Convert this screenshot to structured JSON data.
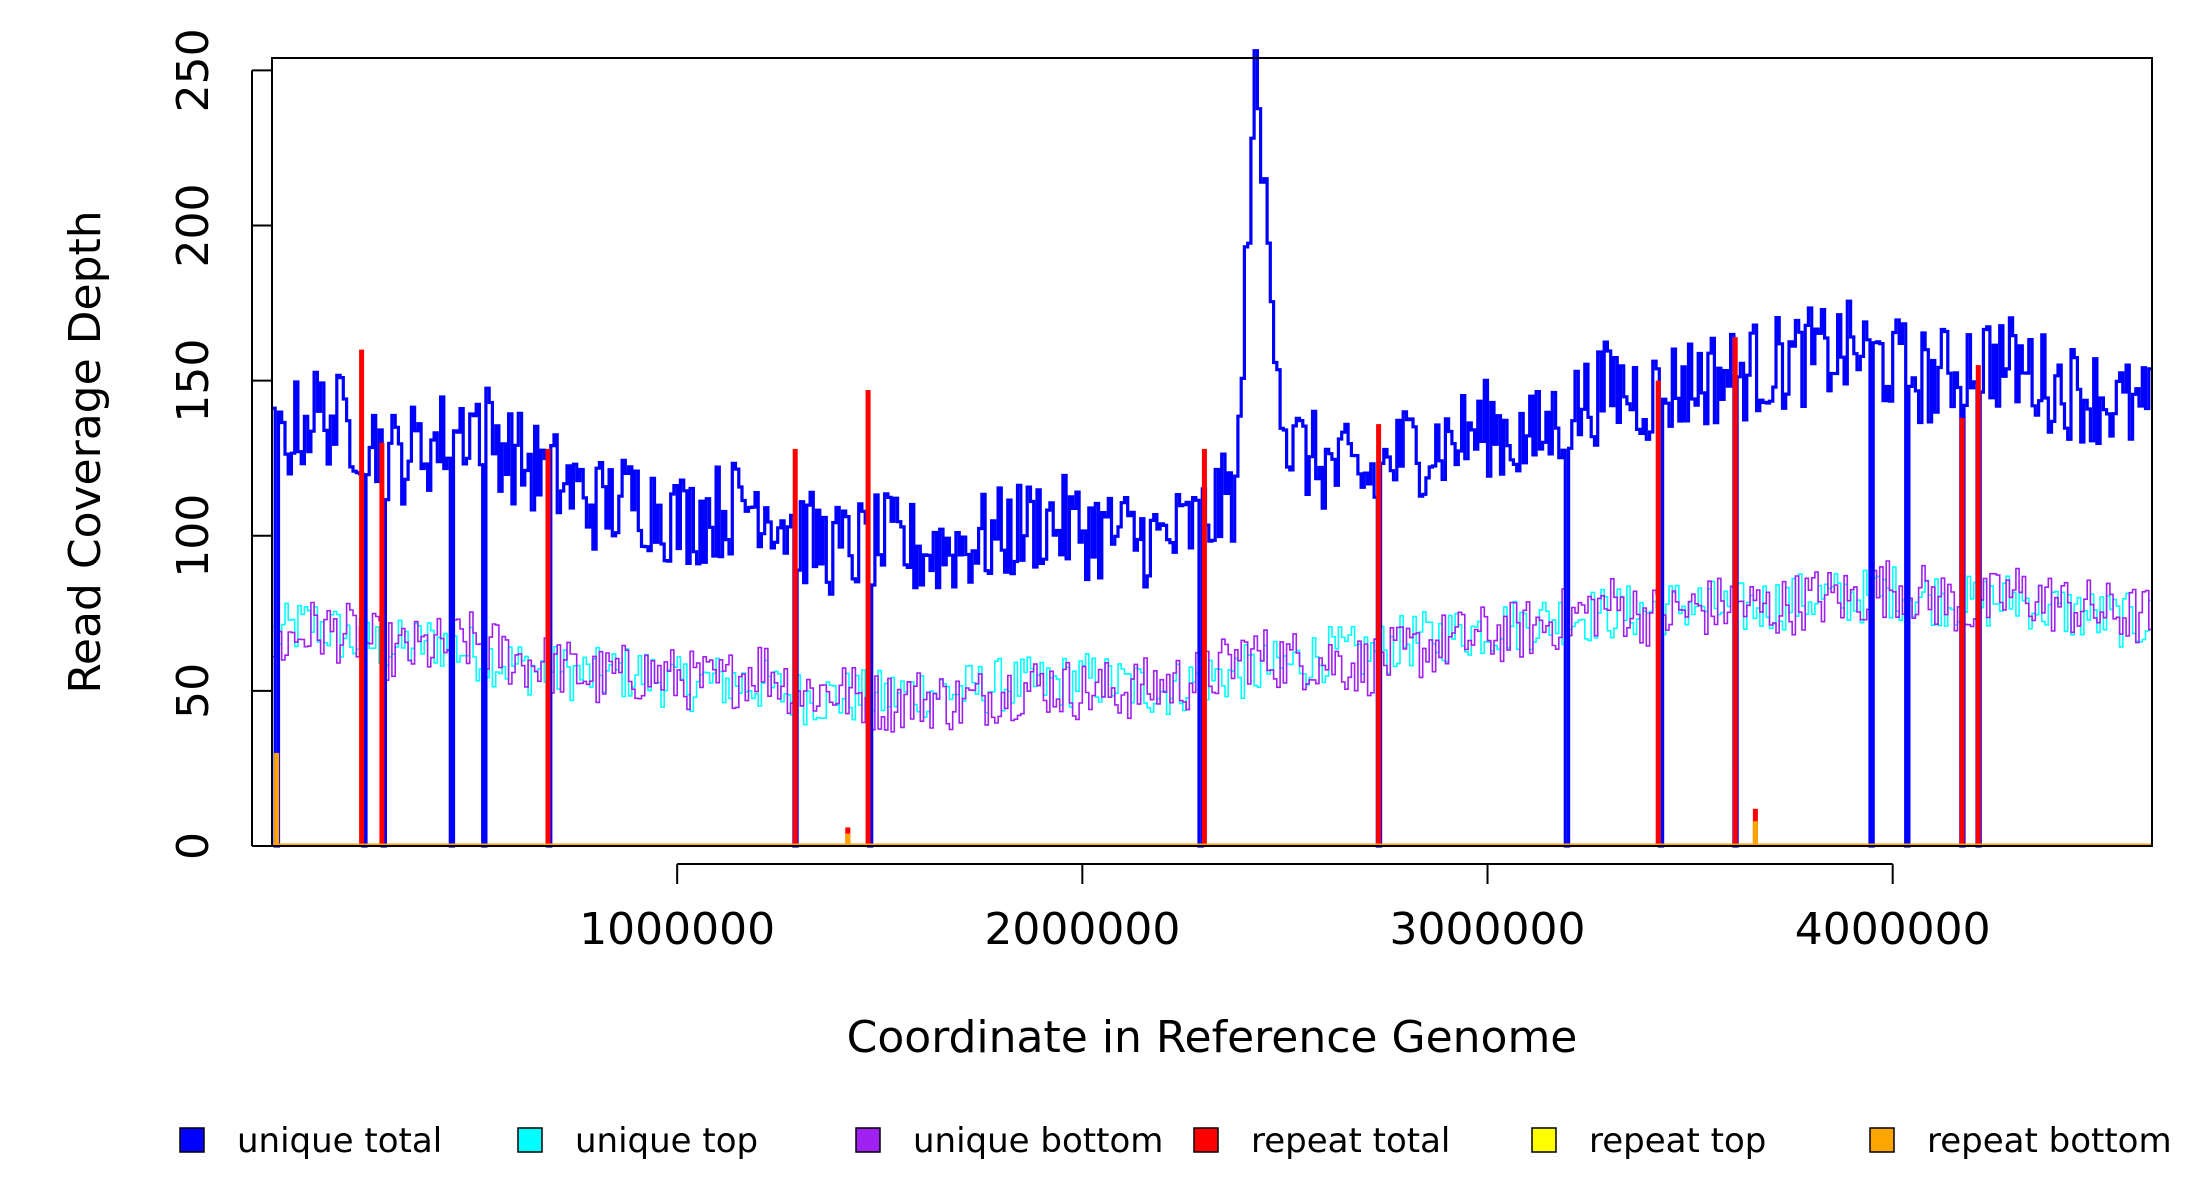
{
  "chart_data": {
    "type": "line",
    "title": "",
    "xlabel": "Coordinate in Reference Genome",
    "ylabel": "Read Coverage Depth",
    "xlim": [
      0,
      4640000
    ],
    "ylim": [
      0,
      255
    ],
    "x_ticks": [
      1000000,
      2000000,
      3000000,
      4000000
    ],
    "x_tick_labels": [
      "1000000",
      "2000000",
      "3000000",
      "4000000"
    ],
    "y_ticks": [
      0,
      50,
      100,
      150,
      200,
      250
    ],
    "y_tick_labels": [
      "0",
      "50",
      "100",
      "150",
      "200",
      "250"
    ],
    "grid": false,
    "legend_position": "bottom",
    "legend": [
      {
        "label": "unique total",
        "color": "#0000ff"
      },
      {
        "label": "unique top",
        "color": "#00ffff"
      },
      {
        "label": "unique bottom",
        "color": "#a020f0"
      },
      {
        "label": "repeat total",
        "color": "#ff0000"
      },
      {
        "label": "repeat top",
        "color": "#ffff00"
      },
      {
        "label": "repeat bottom",
        "color": "#ffa500"
      }
    ],
    "series": [
      {
        "name": "unique total",
        "color": "#0000ff",
        "x": [
          0,
          100000,
          200000,
          300000,
          400000,
          500000,
          600000,
          700000,
          800000,
          900000,
          1000000,
          1100000,
          1200000,
          1300000,
          1400000,
          1500000,
          1600000,
          1700000,
          1800000,
          1900000,
          2000000,
          2100000,
          2200000,
          2300000,
          2380000,
          2420000,
          2500000,
          2600000,
          2700000,
          2800000,
          2900000,
          3000000,
          3100000,
          3200000,
          3300000,
          3400000,
          3500000,
          3600000,
          3700000,
          3800000,
          3900000,
          4000000,
          4100000,
          4200000,
          4300000,
          4400000,
          4500000,
          4600000
        ],
        "y": [
          128,
          140,
          135,
          125,
          130,
          138,
          125,
          118,
          110,
          112,
          105,
          108,
          112,
          100,
          95,
          98,
          95,
          97,
          100,
          105,
          102,
          100,
          98,
          105,
          115,
          248,
          130,
          122,
          118,
          128,
          130,
          135,
          130,
          140,
          148,
          145,
          150,
          152,
          155,
          158,
          160,
          155,
          150,
          158,
          155,
          148,
          145,
          140
        ]
      },
      {
        "name": "unique top",
        "color": "#00ffff",
        "x": [
          0,
          100000,
          200000,
          300000,
          400000,
          500000,
          600000,
          700000,
          800000,
          900000,
          1000000,
          1100000,
          1200000,
          1300000,
          1400000,
          1500000,
          1600000,
          1700000,
          1800000,
          1900000,
          2000000,
          2100000,
          2200000,
          2300000,
          2400000,
          2500000,
          2600000,
          2700000,
          2800000,
          2900000,
          3000000,
          3100000,
          3200000,
          3300000,
          3400000,
          3500000,
          3600000,
          3700000,
          3800000,
          3900000,
          4000000,
          4100000,
          4200000,
          4300000,
          4400000,
          4500000,
          4600000
        ],
        "y": [
          68,
          72,
          66,
          64,
          66,
          62,
          58,
          56,
          55,
          56,
          52,
          53,
          52,
          48,
          48,
          48,
          50,
          50,
          52,
          52,
          54,
          52,
          50,
          54,
          56,
          58,
          62,
          62,
          66,
          68,
          70,
          72,
          74,
          75,
          76,
          78,
          76,
          78,
          80,
          80,
          82,
          80,
          78,
          80,
          76,
          74,
          72
        ]
      },
      {
        "name": "unique bottom",
        "color": "#a020f0",
        "x": [
          0,
          100000,
          200000,
          300000,
          400000,
          500000,
          600000,
          700000,
          800000,
          900000,
          1000000,
          1100000,
          1200000,
          1300000,
          1400000,
          1500000,
          1600000,
          1700000,
          1800000,
          1900000,
          2000000,
          2100000,
          2200000,
          2300000,
          2400000,
          2500000,
          2600000,
          2700000,
          2800000,
          2900000,
          3000000,
          3100000,
          3200000,
          3300000,
          3400000,
          3500000,
          3600000,
          3700000,
          3800000,
          3900000,
          4000000,
          4100000,
          4200000,
          4300000,
          4400000,
          4500000,
          4600000
        ],
        "y": [
          64,
          70,
          68,
          62,
          64,
          66,
          60,
          58,
          54,
          56,
          54,
          52,
          58,
          50,
          50,
          46,
          48,
          46,
          50,
          52,
          50,
          50,
          52,
          54,
          62,
          60,
          60,
          58,
          62,
          66,
          68,
          70,
          74,
          78,
          74,
          76,
          78,
          76,
          80,
          80,
          84,
          80,
          76,
          82,
          78,
          76,
          74
        ]
      },
      {
        "name": "repeat total",
        "color": "#ff0000",
        "x": [
          220000,
          270000,
          680000,
          1290000,
          1420000,
          1470000,
          2300000,
          2730000,
          3420000,
          3610000,
          3660000,
          4170000,
          4210000
        ],
        "y": [
          160,
          130,
          128,
          128,
          6,
          147,
          128,
          136,
          150,
          164,
          12,
          138,
          155
        ]
      },
      {
        "name": "repeat top",
        "color": "#ffff00",
        "x": [],
        "y": []
      },
      {
        "name": "repeat bottom",
        "color": "#ffa500",
        "x": [
          10000,
          1420000,
          3660000
        ],
        "y": [
          30,
          4,
          8
        ]
      }
    ],
    "dropouts_x": [
      10000,
      220000,
      270000,
      440000,
      520000,
      680000,
      1290000,
      1470000,
      2290000,
      2730000,
      3190000,
      3420000,
      3610000,
      3940000,
      4030000,
      4170000,
      4210000
    ]
  }
}
